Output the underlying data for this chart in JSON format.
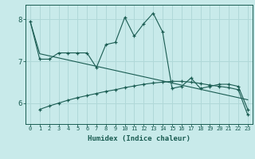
{
  "title": "",
  "xlabel": "Humidex (Indice chaleur)",
  "x_values": [
    0,
    1,
    2,
    3,
    4,
    5,
    6,
    7,
    8,
    9,
    10,
    11,
    12,
    13,
    14,
    15,
    16,
    17,
    18,
    19,
    20,
    21,
    22,
    23
  ],
  "line1_y": [
    7.95,
    7.05,
    7.05,
    7.2,
    7.2,
    7.2,
    7.2,
    6.85,
    7.4,
    7.45,
    8.05,
    7.6,
    7.9,
    8.15,
    7.7,
    6.35,
    6.4,
    6.6,
    6.35,
    6.4,
    6.45,
    6.45,
    6.4,
    5.85
  ],
  "line2_y": [
    null,
    5.85,
    5.93,
    6.0,
    6.07,
    6.13,
    6.18,
    6.23,
    6.28,
    6.32,
    6.37,
    6.41,
    6.45,
    6.48,
    6.5,
    6.52,
    6.52,
    6.5,
    6.47,
    6.43,
    6.4,
    6.37,
    6.32,
    5.72
  ],
  "line3_y": [
    7.95,
    7.18,
    7.13,
    7.08,
    7.03,
    6.98,
    6.93,
    6.88,
    6.83,
    6.78,
    6.73,
    6.68,
    6.63,
    6.58,
    6.53,
    6.48,
    6.43,
    6.38,
    6.33,
    6.28,
    6.23,
    6.18,
    6.13,
    6.08
  ],
  "ylim": [
    5.5,
    8.35
  ],
  "yticks": [
    6,
    7,
    8
  ],
  "line_color": "#1a5c52",
  "bg_color": "#c8eaea",
  "grid_color": "#b0d8d8",
  "tick_label_color": "#1a5c52",
  "xlabel_color": "#1a5c52"
}
